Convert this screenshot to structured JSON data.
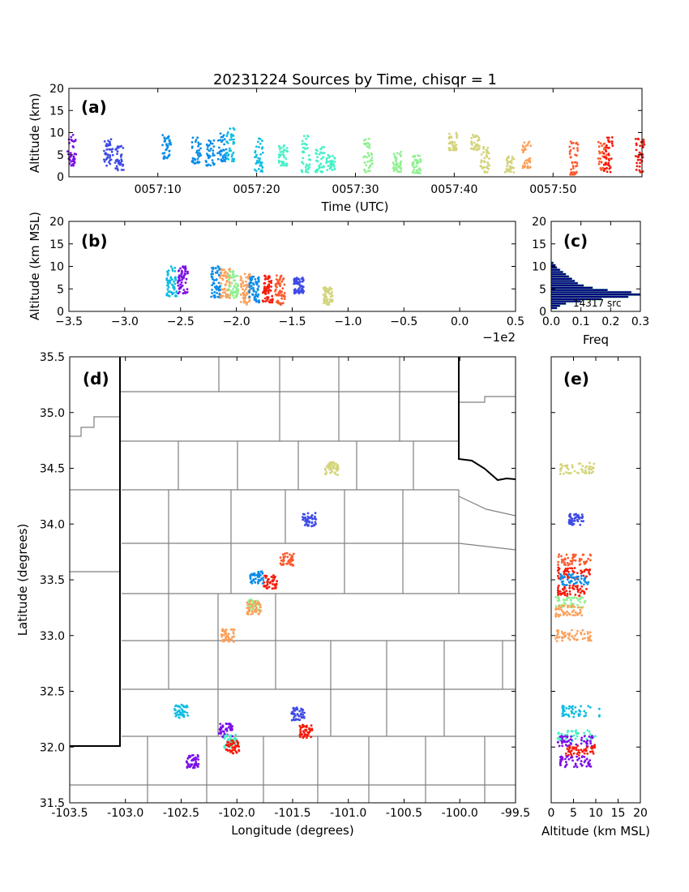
{
  "title": "20231224 Sources by Time, chisqr = 1",
  "colors": [
    "#7c0fe8",
    "#3f4be6",
    "#0a8ce8",
    "#0fbde3",
    "#4af0c8",
    "#90f090",
    "#d4d47c",
    "#fca05a",
    "#fb5a2e",
    "#f51b0b"
  ],
  "chart_data": [
    {
      "id": "a",
      "panel_label": "(a)",
      "type": "scatter",
      "xlabel": "Time (UTC)",
      "ylabel": "Altitude (km)",
      "xticks": [
        "0057:10",
        "0057:20",
        "0057:30",
        "0057:40",
        "0057:50"
      ],
      "yticks": [
        "0",
        "5",
        "10",
        "15",
        "20"
      ],
      "xlim_seconds_after_0057": [
        1,
        59
      ],
      "ylim": [
        0,
        20
      ],
      "bursts": [
        {
          "t": 1.3,
          "zmin": 2.5,
          "zmax": 9.5,
          "color": 0
        },
        {
          "t": 5.0,
          "zmin": 2.5,
          "zmax": 8.5,
          "color": 1
        },
        {
          "t": 6.1,
          "zmin": 1.5,
          "zmax": 7.0,
          "color": 1
        },
        {
          "t": 10.9,
          "zmin": 4.0,
          "zmax": 9.5,
          "color": 2
        },
        {
          "t": 13.9,
          "zmin": 3.0,
          "zmax": 9.0,
          "color": 2
        },
        {
          "t": 15.3,
          "zmin": 2.5,
          "zmax": 8.5,
          "color": 2
        },
        {
          "t": 16.5,
          "zmin": 3.5,
          "zmax": 10.0,
          "color": 2
        },
        {
          "t": 17.3,
          "zmin": 3.5,
          "zmax": 11.0,
          "color": 3
        },
        {
          "t": 20.2,
          "zmin": 1.0,
          "zmax": 9.0,
          "color": 3
        },
        {
          "t": 22.7,
          "zmin": 2.5,
          "zmax": 7.5,
          "color": 4
        },
        {
          "t": 25.0,
          "zmin": 1.0,
          "zmax": 10.5,
          "color": 4
        },
        {
          "t": 26.4,
          "zmin": 1.0,
          "zmax": 7.0,
          "color": 4
        },
        {
          "t": 27.5,
          "zmin": 1.5,
          "zmax": 5.0,
          "color": 4
        },
        {
          "t": 31.3,
          "zmin": 1.0,
          "zmax": 9.0,
          "color": 5
        },
        {
          "t": 34.2,
          "zmin": 1.0,
          "zmax": 6.0,
          "color": 5
        },
        {
          "t": 36.2,
          "zmin": 0.8,
          "zmax": 5.0,
          "color": 5
        },
        {
          "t": 39.9,
          "zmin": 6.0,
          "zmax": 10.0,
          "color": 6
        },
        {
          "t": 42.1,
          "zmin": 6.0,
          "zmax": 9.5,
          "color": 6
        },
        {
          "t": 43.1,
          "zmin": 1.0,
          "zmax": 7.5,
          "color": 6
        },
        {
          "t": 45.6,
          "zmin": 1.0,
          "zmax": 5.0,
          "color": 6
        },
        {
          "t": 47.3,
          "zmin": 2.0,
          "zmax": 8.0,
          "color": 7
        },
        {
          "t": 52.1,
          "zmin": 0.5,
          "zmax": 8.0,
          "color": 8
        },
        {
          "t": 55.0,
          "zmin": 1.5,
          "zmax": 8.0,
          "color": 8
        },
        {
          "t": 55.6,
          "zmin": 1.0,
          "zmax": 9.5,
          "color": 9
        },
        {
          "t": 58.8,
          "zmin": 1.0,
          "zmax": 10.0,
          "color": 9
        }
      ]
    },
    {
      "id": "b",
      "panel_label": "(b)",
      "type": "scatter",
      "xlabel": "",
      "ylabel": "Altitude (km MSL)",
      "offset_label": "−1e2",
      "xticks": [
        "−3.5",
        "−3.0",
        "−2.5",
        "−2.0",
        "−1.5",
        "−1.0",
        "−0.5",
        "0.0",
        "0.5"
      ],
      "yticks": [
        "0",
        "5",
        "10",
        "15",
        "20"
      ],
      "xlim": [
        -3.5,
        0.5
      ],
      "ylim": [
        0,
        20
      ],
      "clusters": [
        {
          "x": -2.58,
          "zmin": 3.0,
          "zmax": 10.0,
          "color": 3
        },
        {
          "x": -2.48,
          "zmin": 4.0,
          "zmax": 10.0,
          "color": 0
        },
        {
          "x": -2.18,
          "zmin": 3.0,
          "zmax": 10.0,
          "color": 2
        },
        {
          "x": -2.1,
          "zmin": 3.0,
          "zmax": 9.5,
          "color": 7
        },
        {
          "x": -2.03,
          "zmin": 3.0,
          "zmax": 9.0,
          "color": 5
        },
        {
          "x": -1.92,
          "zmin": 1.5,
          "zmax": 8.5,
          "color": 7
        },
        {
          "x": -1.84,
          "zmin": 2.0,
          "zmax": 8.0,
          "color": 2
        },
        {
          "x": -1.72,
          "zmin": 2.0,
          "zmax": 8.0,
          "color": 9
        },
        {
          "x": -1.61,
          "zmin": 1.5,
          "zmax": 8.0,
          "color": 8
        },
        {
          "x": -1.44,
          "zmin": 4.0,
          "zmax": 7.5,
          "color": 1
        },
        {
          "x": -1.18,
          "zmin": 1.5,
          "zmax": 5.5,
          "color": 6
        }
      ]
    },
    {
      "id": "c",
      "panel_label": "(c)",
      "type": "bar",
      "orientation": "horizontal",
      "xlabel": "Freq",
      "xticks": [
        "0.0",
        "0.1",
        "0.2",
        "0.3"
      ],
      "yticks": [
        "0",
        "5",
        "10",
        "15",
        "20"
      ],
      "xlim": [
        0,
        0.3
      ],
      "ylim": [
        0,
        20
      ],
      "annotation": "14317 src",
      "bin_lower_altitudes": [
        0.5,
        1.0,
        1.5,
        2.0,
        2.5,
        3.0,
        3.5,
        4.0,
        4.5,
        5.0,
        5.5,
        6.0,
        6.5,
        7.0,
        7.5,
        8.0,
        8.5,
        9.0,
        9.5,
        10.0,
        10.5
      ],
      "freq": [
        0.02,
        0.03,
        0.05,
        0.1,
        0.17,
        0.26,
        0.3,
        0.27,
        0.19,
        0.14,
        0.11,
        0.09,
        0.08,
        0.07,
        0.06,
        0.05,
        0.04,
        0.03,
        0.02,
        0.015,
        0.008
      ]
    },
    {
      "id": "d",
      "panel_label": "(d)",
      "type": "scatter",
      "xlabel": "Longitude (degrees)",
      "ylabel": "Latitude (degrees)",
      "xticks": [
        "-103.5",
        "-103.0",
        "-102.5",
        "-102.0",
        "-101.5",
        "-101.0",
        "-100.5",
        "-100.0",
        "-99.5"
      ],
      "yticks": [
        "31.5",
        "32.0",
        "32.5",
        "33.0",
        "33.5",
        "34.0",
        "34.5",
        "35.0",
        "35.5"
      ],
      "xlim": [
        -103.5,
        -99.5
      ],
      "ylim": [
        31.5,
        35.5
      ],
      "clusters": [
        {
          "lon": -102.5,
          "lat": 32.32,
          "color": 3
        },
        {
          "lon": -102.4,
          "lat": 31.87,
          "color": 0
        },
        {
          "lon": -102.1,
          "lat": 32.15,
          "color": 0
        },
        {
          "lon": -102.06,
          "lat": 32.05,
          "color": 4
        },
        {
          "lon": -102.04,
          "lat": 32.0,
          "color": 9
        },
        {
          "lon": -102.08,
          "lat": 33.0,
          "color": 7
        },
        {
          "lon": -101.84,
          "lat": 33.27,
          "color": 5
        },
        {
          "lon": -101.85,
          "lat": 33.25,
          "color": 7
        },
        {
          "lon": -101.82,
          "lat": 33.52,
          "color": 2
        },
        {
          "lon": -101.7,
          "lat": 33.48,
          "color": 9
        },
        {
          "lon": -101.55,
          "lat": 33.68,
          "color": 8
        },
        {
          "lon": -101.35,
          "lat": 34.04,
          "color": 1
        },
        {
          "lon": -101.45,
          "lat": 32.3,
          "color": 1
        },
        {
          "lon": -101.38,
          "lat": 32.14,
          "color": 9
        },
        {
          "lon": -101.15,
          "lat": 34.5,
          "color": 6
        }
      ]
    },
    {
      "id": "e",
      "panel_label": "(e)",
      "type": "scatter",
      "xlabel": "Altitude (km MSL)",
      "xticks": [
        "0",
        "5",
        "10",
        "15",
        "20"
      ],
      "xlim": [
        0,
        20
      ],
      "ylim": [
        31.5,
        35.5
      ],
      "clusters": [
        {
          "lat": 34.5,
          "zmin": 2.0,
          "zmax": 10.0,
          "color": 6
        },
        {
          "lat": 34.04,
          "zmin": 4.0,
          "zmax": 7.5,
          "color": 1
        },
        {
          "lat": 33.68,
          "zmin": 1.5,
          "zmax": 9.0,
          "color": 8
        },
        {
          "lat": 33.56,
          "zmin": 1.5,
          "zmax": 9.0,
          "color": 9
        },
        {
          "lat": 33.5,
          "zmin": 2.0,
          "zmax": 8.5,
          "color": 2
        },
        {
          "lat": 33.4,
          "zmin": 1.5,
          "zmax": 8.0,
          "color": 9
        },
        {
          "lat": 33.3,
          "zmin": 1.0,
          "zmax": 8.0,
          "color": 5
        },
        {
          "lat": 33.22,
          "zmin": 1.0,
          "zmax": 7.0,
          "color": 7
        },
        {
          "lat": 33.0,
          "zmin": 1.0,
          "zmax": 9.0,
          "color": 7
        },
        {
          "lat": 32.32,
          "zmin": 2.5,
          "zmax": 11.0,
          "color": 3
        },
        {
          "lat": 32.1,
          "zmin": 1.5,
          "zmax": 10.0,
          "color": 4
        },
        {
          "lat": 32.05,
          "zmin": 1.5,
          "zmax": 10.0,
          "color": 0
        },
        {
          "lat": 31.97,
          "zmin": 3.0,
          "zmax": 10.0,
          "color": 9
        },
        {
          "lat": 31.87,
          "zmin": 2.0,
          "zmax": 9.0,
          "color": 0
        }
      ]
    }
  ]
}
